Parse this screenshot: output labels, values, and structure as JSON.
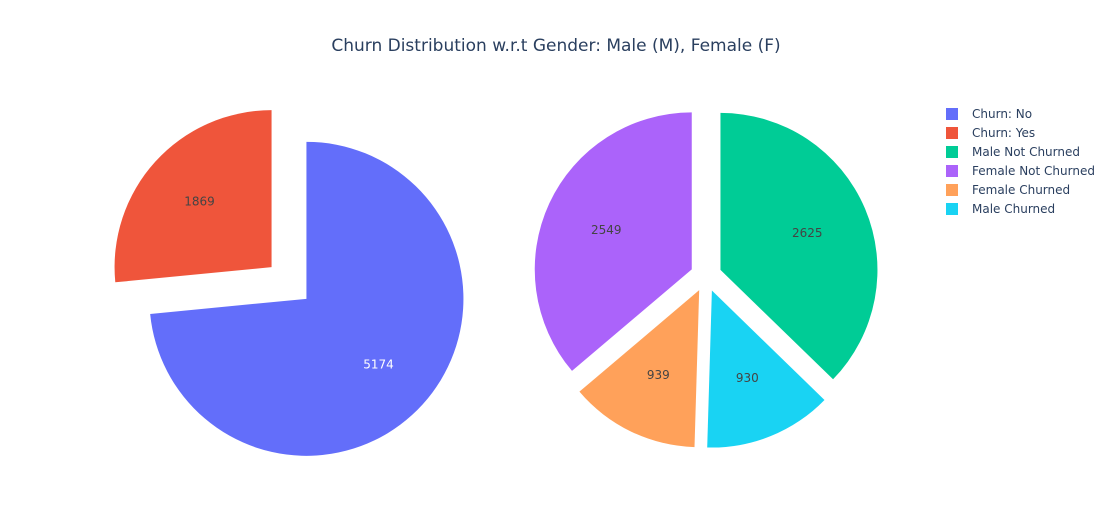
{
  "chart_data": {
    "title": "Churn Distribution w.r.t Gender: Male (M), Female (F)",
    "legend": {
      "placement": "top-right",
      "entries": [
        {
          "label": "Churn: No",
          "color": "#636efa"
        },
        {
          "label": "Churn: Yes",
          "color": "#ef553b"
        },
        {
          "label": "Male Not Churned",
          "color": "#00cc96"
        },
        {
          "label": "Female Not Churned",
          "color": "#ab63fa"
        },
        {
          "label": "Female Churned",
          "color": "#ffa15a"
        },
        {
          "label": "Male Churned",
          "color": "#19d3f3"
        }
      ]
    },
    "pies": [
      {
        "type": "pie",
        "slices": [
          {
            "label": "Churn: No",
            "value": 5174,
            "color": "#636efa",
            "text_color": "#ffffff"
          },
          {
            "label": "Churn: Yes",
            "value": 1869,
            "color": "#ef553b",
            "text_color": "#444444"
          }
        ]
      },
      {
        "type": "pie",
        "slices": [
          {
            "label": "Male Not Churned",
            "value": 2625,
            "color": "#00cc96",
            "text_color": "#444444"
          },
          {
            "label": "Male Churned",
            "value": 930,
            "color": "#19d3f3",
            "text_color": "#444444"
          },
          {
            "label": "Female Churned",
            "value": 939,
            "color": "#ffa15a",
            "text_color": "#444444"
          },
          {
            "label": "Female Not Churned",
            "value": 2549,
            "color": "#ab63fa",
            "text_color": "#444444"
          }
        ]
      }
    ]
  }
}
